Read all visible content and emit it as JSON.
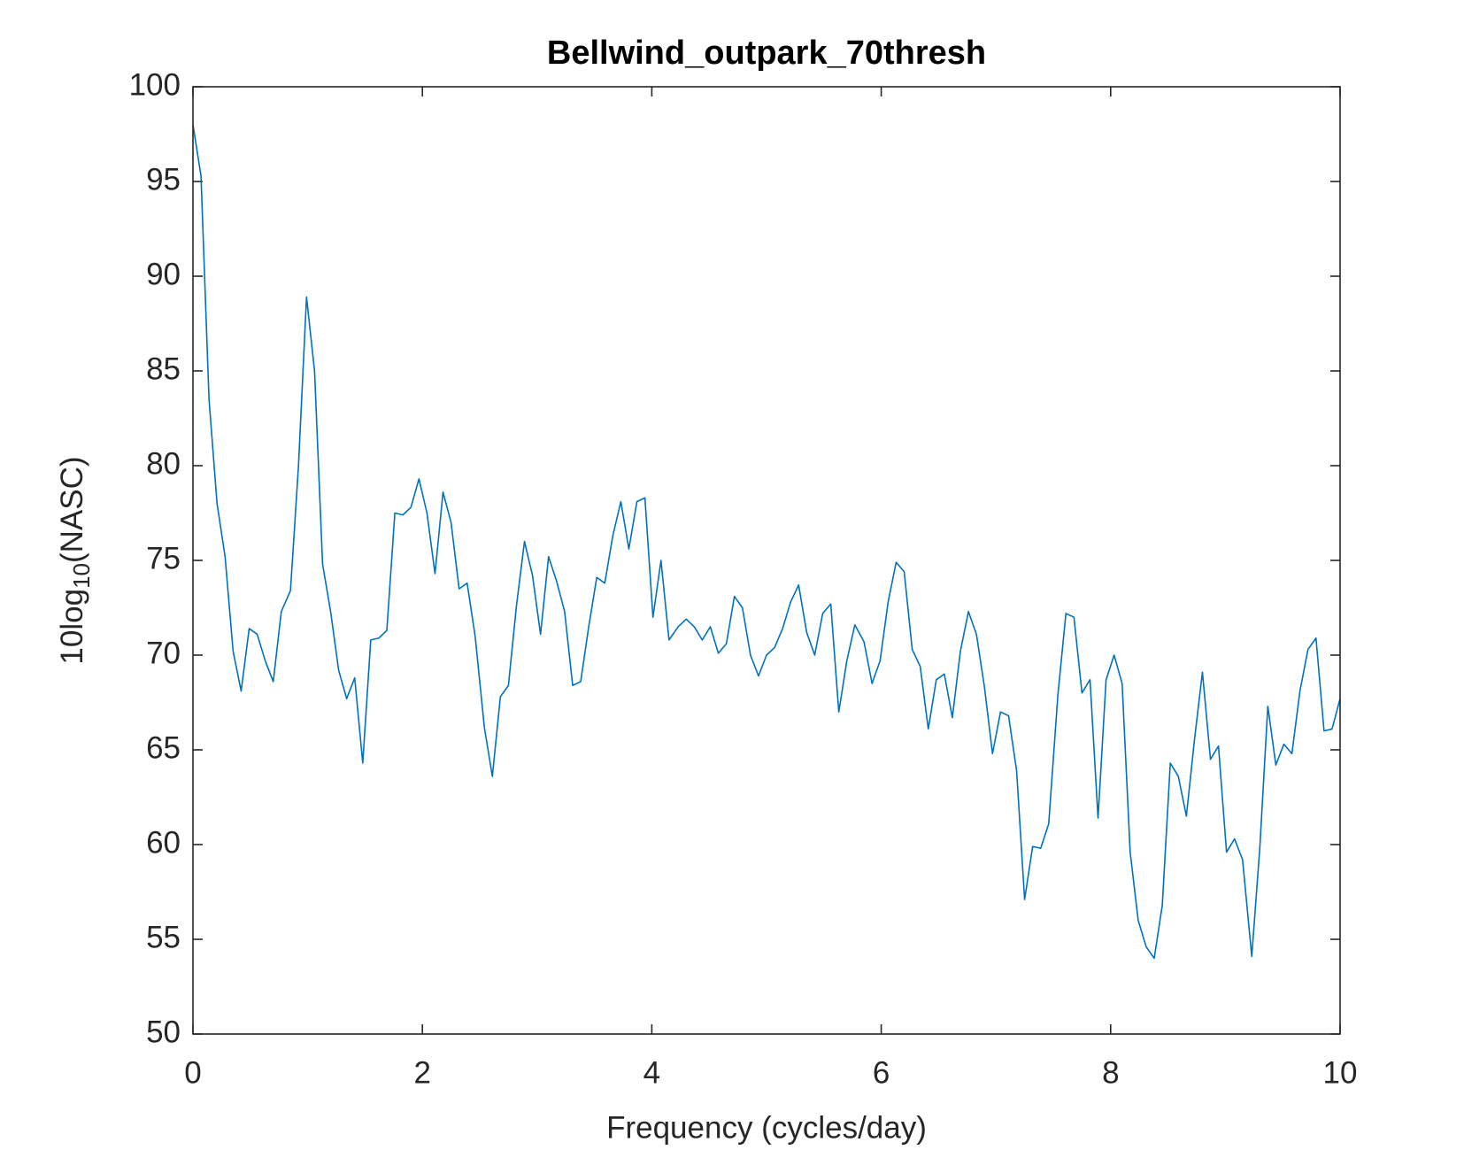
{
  "chart_data": {
    "type": "line",
    "title": "Bellwind_outpark_70thresh",
    "xlabel": "Frequency (cycles/day)",
    "ylabel": [
      "10log",
      "10",
      "(NASC)"
    ],
    "xlim": [
      0,
      10
    ],
    "xticks": [
      0,
      2,
      4,
      6,
      8,
      10
    ],
    "ylim": [
      50,
      100
    ],
    "yticks": [
      50,
      55,
      60,
      65,
      70,
      75,
      80,
      85,
      90,
      95,
      100
    ],
    "grid": false,
    "x": [
      0,
      0.07,
      0.14,
      0.21,
      0.28,
      0.35,
      0.42,
      0.49,
      0.56,
      0.63,
      0.7,
      0.77,
      0.85,
      0.92,
      0.99,
      1.06,
      1.13,
      1.2,
      1.27,
      1.34,
      1.41,
      1.48,
      1.55,
      1.62,
      1.69,
      1.76,
      1.83,
      1.9,
      1.97,
      2.04,
      2.11,
      2.18,
      2.25,
      2.32,
      2.39,
      2.46,
      2.54,
      2.61,
      2.68,
      2.75,
      2.82,
      2.89,
      2.96,
      3.03,
      3.1,
      3.17,
      3.24,
      3.31,
      3.38,
      3.45,
      3.52,
      3.59,
      3.66,
      3.73,
      3.8,
      3.87,
      3.94,
      4.01,
      4.08,
      4.15,
      4.23,
      4.3,
      4.37,
      4.44,
      4.51,
      4.58,
      4.65,
      4.72,
      4.79,
      4.86,
      4.93,
      5.0,
      5.07,
      5.14,
      5.21,
      5.28,
      5.35,
      5.42,
      5.49,
      5.56,
      5.63,
      5.7,
      5.77,
      5.85,
      5.92,
      5.99,
      6.06,
      6.13,
      6.2,
      6.27,
      6.34,
      6.41,
      6.48,
      6.55,
      6.62,
      6.69,
      6.76,
      6.83,
      6.9,
      6.97,
      7.04,
      7.11,
      7.18,
      7.25,
      7.32,
      7.39,
      7.46,
      7.54,
      7.61,
      7.68,
      7.75,
      7.82,
      7.89,
      7.96,
      8.03,
      8.1,
      8.17,
      8.24,
      8.31,
      8.38,
      8.45,
      8.52,
      8.59,
      8.66,
      8.73,
      8.8,
      8.87,
      8.94,
      9.01,
      9.08,
      9.15,
      9.23,
      9.3,
      9.37,
      9.44,
      9.51,
      9.58,
      9.65,
      9.72,
      9.79,
      9.86,
      9.93,
      10
    ],
    "series": [
      {
        "color": "#0072bd",
        "values": [
          98,
          95.3,
          83.5,
          78,
          75.2,
          70.2,
          68.1,
          71.4,
          71.1,
          69.7,
          68.6,
          72.3,
          73.4,
          80,
          88.9,
          85,
          74.8,
          72.3,
          69.2,
          67.7,
          68.8,
          64.3,
          70.8,
          70.9,
          71.3,
          77.5,
          77.4,
          77.8,
          79.3,
          77.5,
          74.3,
          78.6,
          77,
          73.5,
          73.8,
          71,
          66.2,
          63.6,
          67.8,
          68.4,
          72.6,
          76,
          74.2,
          71.1,
          75.2,
          73.9,
          72.3,
          68.4,
          68.6,
          71.5,
          74.1,
          73.8,
          76.3,
          78.1,
          75.6,
          78.1,
          78.3,
          72,
          75,
          70.8,
          71.5,
          71.9,
          71.5,
          70.8,
          71.5,
          70.1,
          70.6,
          73.1,
          72.5,
          70,
          68.9,
          70,
          70.4,
          71.4,
          72.8,
          73.7,
          71.2,
          70,
          72.2,
          72.7,
          67,
          69.7,
          71.6,
          70.7,
          68.5,
          69.7,
          72.8,
          74.9,
          74.4,
          70.3,
          69.4,
          66.1,
          68.7,
          69,
          66.7,
          70.2,
          72.3,
          71.1,
          68.3,
          64.8,
          67,
          66.8,
          63.9,
          57.1,
          59.9,
          59.8,
          61.1,
          67.9,
          72.2,
          72,
          68,
          68.7,
          61.4,
          68.7,
          70,
          68.5,
          59.6,
          56,
          54.6,
          54,
          56.8,
          64.3,
          63.6,
          61.5,
          65.5,
          69.1,
          64.5,
          65.2,
          59.6,
          60.3,
          59.2,
          54.1,
          59.8,
          67.3,
          64.2,
          65.3,
          64.8,
          68.1,
          70.3,
          70.9,
          66,
          66.1,
          67.7
        ]
      }
    ]
  }
}
